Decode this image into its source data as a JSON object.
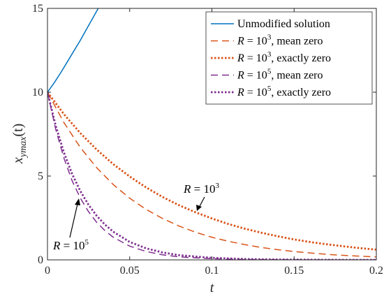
{
  "chart_data": {
    "type": "line",
    "xlabel": "t",
    "ylabel": "x_ymax(t)",
    "ylabel_main": "x",
    "ylabel_sub": "ymax",
    "ylabel_arg": "(t)",
    "xlim": [
      0,
      0.2
    ],
    "ylim": [
      0,
      15
    ],
    "xticks": [
      "0",
      "0.05",
      "0.1",
      "0.15",
      "0.2"
    ],
    "yticks": [
      "0",
      "5",
      "10",
      "15"
    ],
    "grid": false,
    "legend_position": "top-right",
    "series": [
      {
        "name": "Unmodified solution",
        "color": "#0072BD",
        "style": "solid",
        "x": [
          0,
          0.004,
          0.008,
          0.012,
          0.016,
          0.02,
          0.024,
          0.028,
          0.032
        ],
        "y": [
          10.0,
          10.55,
          11.15,
          11.8,
          12.45,
          13.1,
          13.8,
          14.5,
          15.2
        ]
      },
      {
        "name": "R = 10^3, mean zero",
        "color": "#D95319",
        "style": "dashed",
        "x": [
          0,
          0.01,
          0.02,
          0.03,
          0.04,
          0.05,
          0.06,
          0.07,
          0.08,
          0.09,
          0.1,
          0.11,
          0.12,
          0.13,
          0.14,
          0.15,
          0.16,
          0.17,
          0.18,
          0.19,
          0.2
        ],
        "y": [
          10.0,
          8.19,
          6.7,
          5.49,
          4.49,
          3.68,
          3.01,
          2.47,
          2.02,
          1.65,
          1.35,
          1.11,
          0.91,
          0.74,
          0.61,
          0.5,
          0.41,
          0.33,
          0.27,
          0.22,
          0.18
        ]
      },
      {
        "name": "R = 10^3, exactly zero",
        "color": "#D95319",
        "style": "dotted",
        "x": [
          0,
          0.01,
          0.02,
          0.03,
          0.04,
          0.05,
          0.06,
          0.07,
          0.08,
          0.09,
          0.1,
          0.11,
          0.12,
          0.13,
          0.14,
          0.15,
          0.16,
          0.17,
          0.18,
          0.19,
          0.2
        ],
        "y": [
          10.0,
          8.69,
          7.56,
          6.57,
          5.71,
          4.97,
          4.32,
          3.75,
          3.26,
          2.84,
          2.47,
          2.14,
          1.86,
          1.62,
          1.41,
          1.22,
          1.06,
          0.93,
          0.81,
          0.7,
          0.61
        ]
      },
      {
        "name": "R = 10^5, mean zero",
        "color": "#7E2F8E",
        "style": "dashed",
        "x": [
          0,
          0.005,
          0.01,
          0.015,
          0.02,
          0.025,
          0.03,
          0.035,
          0.04,
          0.05,
          0.06,
          0.07,
          0.08,
          0.1,
          0.12,
          0.14,
          0.16,
          0.18,
          0.2
        ],
        "y": [
          10.0,
          7.79,
          6.07,
          4.72,
          3.68,
          2.87,
          2.23,
          1.74,
          1.35,
          0.82,
          0.5,
          0.3,
          0.18,
          0.07,
          0.02,
          0.01,
          0.0,
          0.0,
          0.0
        ]
      },
      {
        "name": "R = 10^5, exactly zero",
        "color": "#7E2F8E",
        "style": "dotted",
        "x": [
          0,
          0.005,
          0.01,
          0.015,
          0.02,
          0.025,
          0.03,
          0.035,
          0.04,
          0.05,
          0.06,
          0.07,
          0.08,
          0.1,
          0.12,
          0.14,
          0.16,
          0.18,
          0.2
        ],
        "y": [
          10.0,
          8.0,
          6.4,
          5.12,
          4.1,
          3.28,
          2.62,
          2.1,
          1.68,
          1.07,
          0.69,
          0.44,
          0.28,
          0.12,
          0.05,
          0.02,
          0.01,
          0.0,
          0.0
        ]
      }
    ],
    "legend": [
      {
        "base": "Unmodified solution",
        "sup": "",
        "rest": ""
      },
      {
        "base": "R = 10",
        "sup": "3",
        "rest": ", mean zero"
      },
      {
        "base": "R = 10",
        "sup": "3",
        "rest": ", exactly zero"
      },
      {
        "base": "R = 10",
        "sup": "5",
        "rest": ", mean zero"
      },
      {
        "base": "R = 10",
        "sup": "5",
        "rest": ", exactly zero"
      }
    ],
    "annotations": [
      {
        "base": "R = 10",
        "sup": "3"
      },
      {
        "base": "R = 10",
        "sup": "5"
      }
    ]
  }
}
